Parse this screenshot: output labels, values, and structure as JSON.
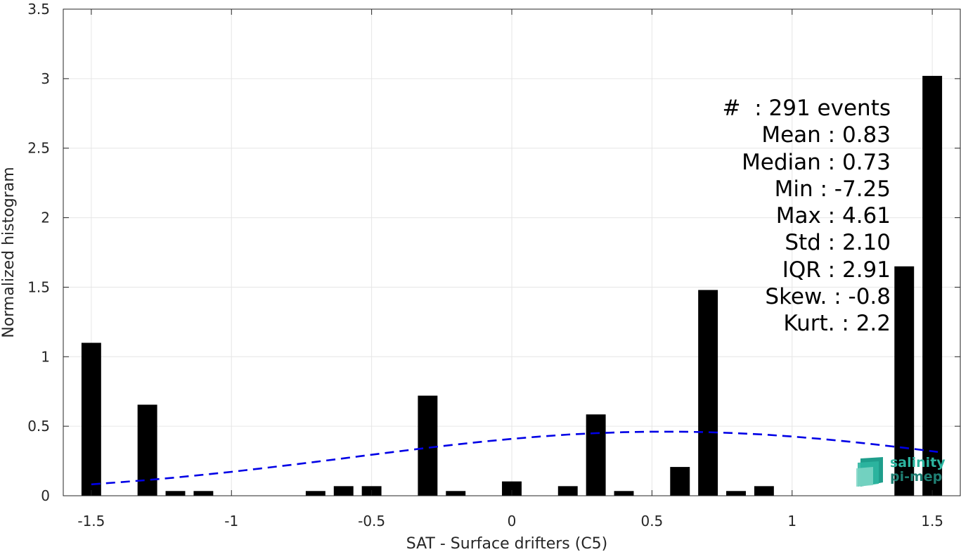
{
  "chart_data": {
    "type": "bar",
    "xlabel": "SAT - Surface drifters (C5)",
    "ylabel": "Normalized histogram",
    "xlim": [
      -1.6,
      1.6
    ],
    "ylim": [
      0,
      3.5
    ],
    "grid": true,
    "xticks": [
      -1.5,
      -1,
      -0.5,
      0,
      0.5,
      1,
      1.5
    ],
    "xtick_labels": [
      "-1.5",
      "-1",
      "-0.5",
      "0",
      "0.5",
      "1",
      "1.5"
    ],
    "yticks": [
      0,
      0.5,
      1,
      1.5,
      2,
      2.5,
      3,
      3.5
    ],
    "ytick_labels": [
      "0",
      "0.5",
      "1",
      "1.5",
      "2",
      "2.5",
      "3",
      "3.5"
    ],
    "bar_width": 0.07,
    "bars": [
      {
        "x": -1.5,
        "y": 1.1
      },
      {
        "x": -1.3,
        "y": 0.655
      },
      {
        "x": -1.2,
        "y": 0.034
      },
      {
        "x": -1.1,
        "y": 0.034
      },
      {
        "x": -0.7,
        "y": 0.034
      },
      {
        "x": -0.6,
        "y": 0.069
      },
      {
        "x": -0.5,
        "y": 0.069
      },
      {
        "x": -0.3,
        "y": 0.72
      },
      {
        "x": -0.2,
        "y": 0.034
      },
      {
        "x": 0.0,
        "y": 0.103
      },
      {
        "x": 0.2,
        "y": 0.069
      },
      {
        "x": 0.3,
        "y": 0.585
      },
      {
        "x": 0.4,
        "y": 0.034
      },
      {
        "x": 0.6,
        "y": 0.207
      },
      {
        "x": 0.7,
        "y": 1.48
      },
      {
        "x": 0.8,
        "y": 0.034
      },
      {
        "x": 0.9,
        "y": 0.069
      },
      {
        "x": 1.4,
        "y": 1.65
      },
      {
        "x": 1.5,
        "y": 3.02
      }
    ],
    "fit_curve": {
      "style": "dashed",
      "color": "#0000e6",
      "points": [
        [
          -1.5,
          0.082
        ],
        [
          -1.4,
          0.097
        ],
        [
          -1.3,
          0.113
        ],
        [
          -1.2,
          0.131
        ],
        [
          -1.1,
          0.151
        ],
        [
          -1.0,
          0.172
        ],
        [
          -0.9,
          0.195
        ],
        [
          -0.8,
          0.219
        ],
        [
          -0.7,
          0.244
        ],
        [
          -0.6,
          0.269
        ],
        [
          -0.5,
          0.295
        ],
        [
          -0.4,
          0.32
        ],
        [
          -0.3,
          0.345
        ],
        [
          -0.2,
          0.368
        ],
        [
          -0.1,
          0.39
        ],
        [
          0.0,
          0.409
        ],
        [
          0.1,
          0.426
        ],
        [
          0.2,
          0.44
        ],
        [
          0.3,
          0.45
        ],
        [
          0.4,
          0.457
        ],
        [
          0.5,
          0.461
        ],
        [
          0.6,
          0.461
        ],
        [
          0.7,
          0.457
        ],
        [
          0.8,
          0.45
        ],
        [
          0.9,
          0.44
        ],
        [
          1.0,
          0.426
        ],
        [
          1.1,
          0.409
        ],
        [
          1.2,
          0.39
        ],
        [
          1.3,
          0.368
        ],
        [
          1.4,
          0.345
        ],
        [
          1.5,
          0.32
        ],
        [
          1.52,
          0.315
        ]
      ]
    },
    "annotations": [
      "#  : 291 events",
      "Mean : 0.83",
      "Median : 0.73",
      "Min : -7.25",
      "Max : 4.61",
      "Std : 2.10",
      "IQR : 2.91",
      "Skew. : -0.8",
      "Kurt. : 2.2"
    ],
    "colors": {
      "bars": "#000000",
      "fit": "#0000e6",
      "grid": "#e6e6e6",
      "axis": "#262626"
    }
  },
  "logo": {
    "line1": "salinity",
    "line2": "pi-mep"
  }
}
